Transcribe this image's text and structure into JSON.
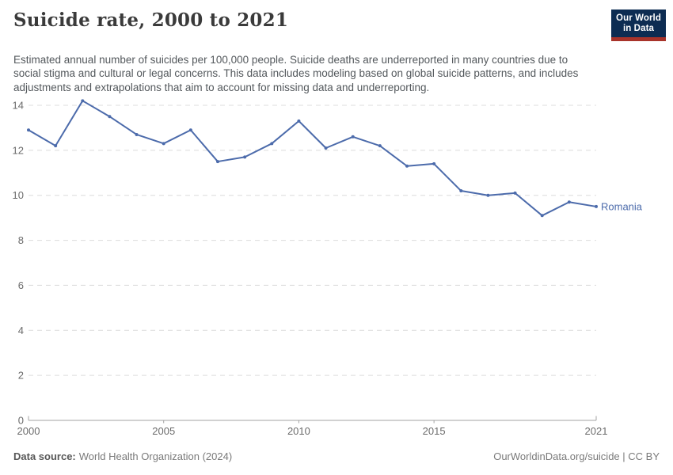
{
  "header": {
    "title": "Suicide rate, 2000 to 2021",
    "subtitle": "Estimated annual number of suicides per 100,000 people. Suicide deaths are underreported in many countries due to social stigma and cultural or legal concerns. This data includes modeling based on global suicide patterns, and includes adjustments and extrapolations that aim to account for missing data and underreporting.",
    "logo": {
      "line1": "Our World",
      "line2": "in Data",
      "bg_color": "#0d2c52",
      "accent_color": "#a8332a"
    }
  },
  "chart_data": {
    "type": "line",
    "title": "Suicide rate, 2000 to 2021",
    "x": [
      2000,
      2001,
      2002,
      2003,
      2004,
      2005,
      2006,
      2007,
      2008,
      2009,
      2010,
      2011,
      2012,
      2013,
      2014,
      2015,
      2016,
      2017,
      2018,
      2019,
      2020,
      2021
    ],
    "series": [
      {
        "name": "Romania",
        "color": "#4c6bab",
        "values": [
          12.9,
          12.2,
          14.2,
          13.5,
          12.7,
          12.3,
          12.9,
          11.5,
          11.7,
          12.3,
          13.3,
          12.1,
          12.6,
          12.2,
          11.3,
          11.4,
          10.2,
          10.0,
          10.1,
          9.1,
          9.7,
          9.5
        ]
      }
    ],
    "xlabel": "",
    "ylabel": "",
    "ylim": [
      0,
      14
    ],
    "yticks": [
      0,
      2,
      4,
      6,
      8,
      10,
      12,
      14
    ],
    "xticks": [
      2000,
      2005,
      2010,
      2015,
      2021
    ],
    "grid": "horizontal-dashed",
    "legend": "line-end-label",
    "colors": {
      "gridline": "#dcdcdc",
      "axis_line": "#a3a3a3",
      "tick_label": "#6b6b6b"
    }
  },
  "footer": {
    "source_label": "Data source:",
    "source_value": "World Health Organization (2024)",
    "credit": "OurWorldinData.org/suicide | CC BY"
  }
}
